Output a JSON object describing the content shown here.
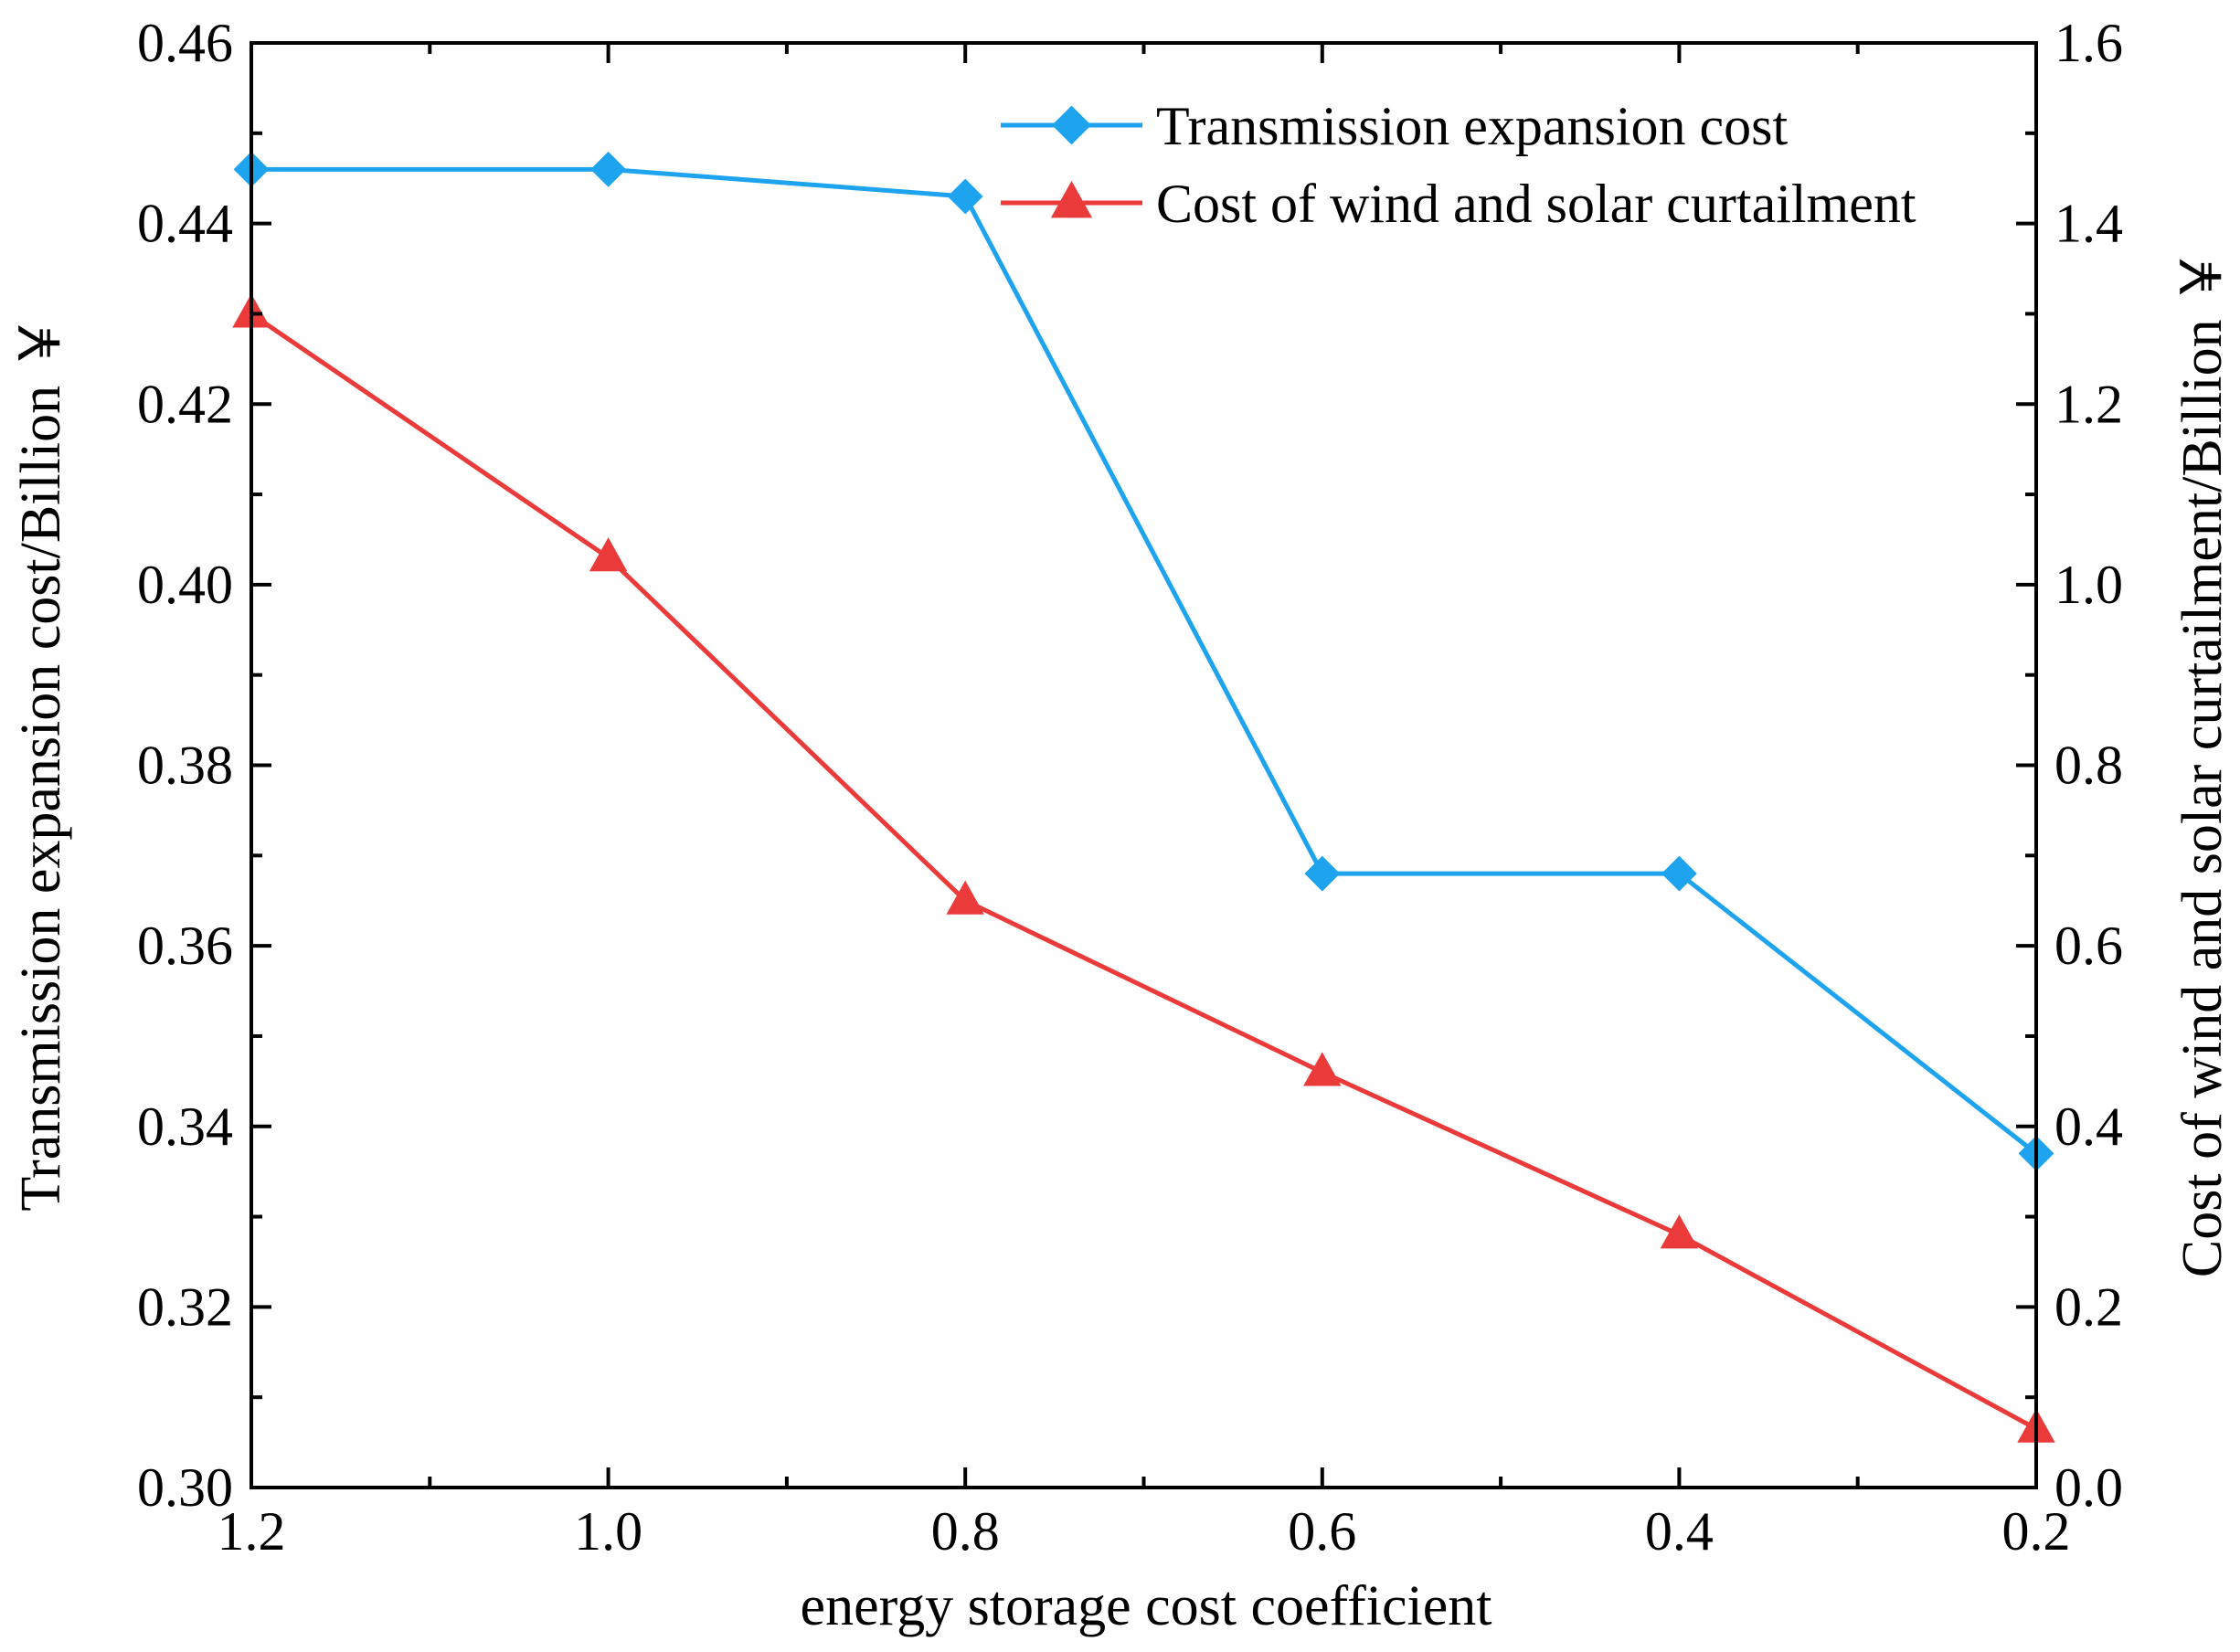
{
  "chart_data": {
    "type": "line",
    "xlabel": "energy storage cost coefficient",
    "ylabel_left": "Transmission expansion cost/Billion ￥",
    "ylabel_right": "Cost of wind and solar curtailment/Billion ￥",
    "x": [
      1.2,
      1.0,
      0.8,
      0.6,
      0.4,
      0.2
    ],
    "x_tick_labels": [
      "1.2",
      "1.0",
      "0.8",
      "0.6",
      "0.4",
      "0.2"
    ],
    "xlim": [
      1.2,
      0.2
    ],
    "ylim_left": [
      0.3,
      0.46
    ],
    "ylim_right": [
      0.0,
      1.6
    ],
    "y_left_tick_labels": [
      "0.30",
      "0.32",
      "0.34",
      "0.36",
      "0.38",
      "0.40",
      "0.42",
      "0.44",
      "0.46"
    ],
    "y_right_tick_labels": [
      "0.0",
      "0.2",
      "0.4",
      "0.6",
      "0.8",
      "1.0",
      "1.2",
      "1.4",
      "1.6"
    ],
    "legend_position": "top-right",
    "grid": false,
    "series": [
      {
        "name": "Transmission expansion cost",
        "axis": "left",
        "marker": "diamond",
        "color": "#1ea3ee",
        "values": [
          0.446,
          0.446,
          0.443,
          0.368,
          0.368,
          0.337
        ]
      },
      {
        "name": "Cost of wind and solar curtailment",
        "axis": "right",
        "marker": "triangle",
        "color": "#ea3a3a",
        "values": [
          1.3,
          1.03,
          0.65,
          0.46,
          0.28,
          0.065
        ]
      }
    ]
  }
}
